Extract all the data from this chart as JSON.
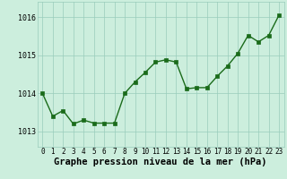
{
  "x": [
    0,
    1,
    2,
    3,
    4,
    5,
    6,
    7,
    8,
    9,
    10,
    11,
    12,
    13,
    14,
    15,
    16,
    17,
    18,
    19,
    20,
    21,
    22,
    23
  ],
  "y": [
    1014.0,
    1013.4,
    1013.55,
    1013.2,
    1013.3,
    1013.22,
    1013.22,
    1013.22,
    1014.0,
    1014.3,
    1014.55,
    1014.82,
    1014.88,
    1014.82,
    1014.12,
    1014.15,
    1014.15,
    1014.45,
    1014.72,
    1015.05,
    1015.52,
    1015.35,
    1015.52,
    1016.05
  ],
  "line_color": "#1a6b1a",
  "marker": "s",
  "marker_size": 2.5,
  "bg_color": "#cceedd",
  "grid_color": "#99ccbb",
  "xlabel": "Graphe pression niveau de la mer (hPa)",
  "xlabel_fontsize": 7.5,
  "yticks": [
    1013,
    1014,
    1015,
    1016
  ],
  "xticks": [
    0,
    1,
    2,
    3,
    4,
    5,
    6,
    7,
    8,
    9,
    10,
    11,
    12,
    13,
    14,
    15,
    16,
    17,
    18,
    19,
    20,
    21,
    22,
    23
  ],
  "ylim": [
    1012.6,
    1016.4
  ],
  "xlim": [
    -0.5,
    23.5
  ],
  "ytick_fontsize": 6.0,
  "xtick_fontsize": 5.5,
  "line_width": 1.0
}
